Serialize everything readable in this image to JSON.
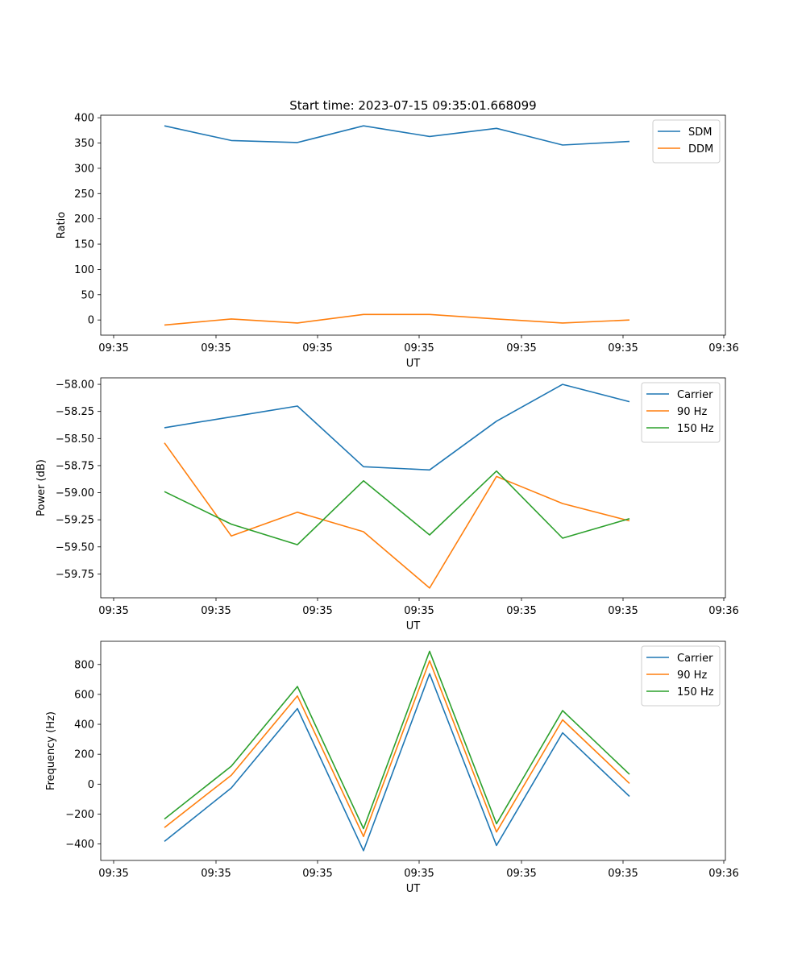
{
  "figure": {
    "title": "Start time: 2023-07-15 09:35:01.668099"
  },
  "chart_data": [
    {
      "type": "line",
      "title": "Start time: 2023-07-15 09:35:01.668099",
      "xlabel": "UT",
      "ylabel": "Ratio",
      "x_tick_labels": [
        "09:35",
        "09:35",
        "09:35",
        "09:35",
        "09:35",
        "09:35",
        "09:36"
      ],
      "ylim": [
        -30,
        405
      ],
      "y_ticks": [
        0,
        50,
        100,
        150,
        200,
        250,
        300,
        350,
        400
      ],
      "y_tick_labels": [
        "0",
        "50",
        "100",
        "150",
        "200",
        "250",
        "300",
        "350",
        "400"
      ],
      "legend_position": "top-right",
      "series": [
        {
          "name": "SDM",
          "color": "#1f77b4",
          "values": [
            384,
            355,
            351,
            384,
            363,
            379,
            346,
            353
          ]
        },
        {
          "name": "DDM",
          "color": "#ff7f0e",
          "values": [
            -10,
            2,
            -6,
            11,
            11,
            2,
            -6,
            0
          ]
        }
      ]
    },
    {
      "type": "line",
      "xlabel": "UT",
      "ylabel": "Power (dB)",
      "x_tick_labels": [
        "09:35",
        "09:35",
        "09:35",
        "09:35",
        "09:35",
        "09:35",
        "09:36"
      ],
      "ylim": [
        -59.97,
        -57.94
      ],
      "y_ticks": [
        -59.75,
        -59.5,
        -59.25,
        -59.0,
        -58.75,
        -58.5,
        -58.25,
        -58.0
      ],
      "y_tick_labels": [
        "−59.75",
        "−59.50",
        "−59.25",
        "−59.00",
        "−58.75",
        "−58.50",
        "−58.25",
        "−58.00"
      ],
      "legend_position": "top-right",
      "series": [
        {
          "name": "Carrier",
          "color": "#1f77b4",
          "values": [
            -58.4,
            -58.3,
            -58.2,
            -58.76,
            -58.79,
            -58.34,
            -58.0,
            -58.16
          ]
        },
        {
          "name": "90 Hz",
          "color": "#ff7f0e",
          "values": [
            -58.54,
            -59.4,
            -59.18,
            -59.36,
            -59.88,
            -58.85,
            -59.1,
            -59.26
          ]
        },
        {
          "name": "150 Hz",
          "color": "#2ca02c",
          "values": [
            -58.99,
            -59.29,
            -59.48,
            -58.89,
            -59.39,
            -58.8,
            -59.42,
            -59.24
          ]
        }
      ]
    },
    {
      "type": "line",
      "xlabel": "UT",
      "ylabel": "Frequency (Hz)",
      "x_tick_labels": [
        "09:35",
        "09:35",
        "09:35",
        "09:35",
        "09:35",
        "09:35",
        "09:36"
      ],
      "ylim": [
        -510,
        955
      ],
      "y_ticks": [
        -400,
        -200,
        0,
        200,
        400,
        600,
        800
      ],
      "y_tick_labels": [
        "−400",
        "−200",
        "0",
        "200",
        "400",
        "600",
        "800"
      ],
      "legend_position": "top-right",
      "series": [
        {
          "name": "Carrier",
          "color": "#1f77b4",
          "values": [
            -383,
            -25,
            505,
            -445,
            738,
            -410,
            343,
            -82
          ]
        },
        {
          "name": "90 Hz",
          "color": "#ff7f0e",
          "values": [
            -290,
            60,
            590,
            -350,
            825,
            -320,
            430,
            5
          ]
        },
        {
          "name": "150 Hz",
          "color": "#2ca02c",
          "values": [
            -233,
            120,
            653,
            -297,
            888,
            -265,
            492,
            66
          ]
        }
      ]
    }
  ]
}
